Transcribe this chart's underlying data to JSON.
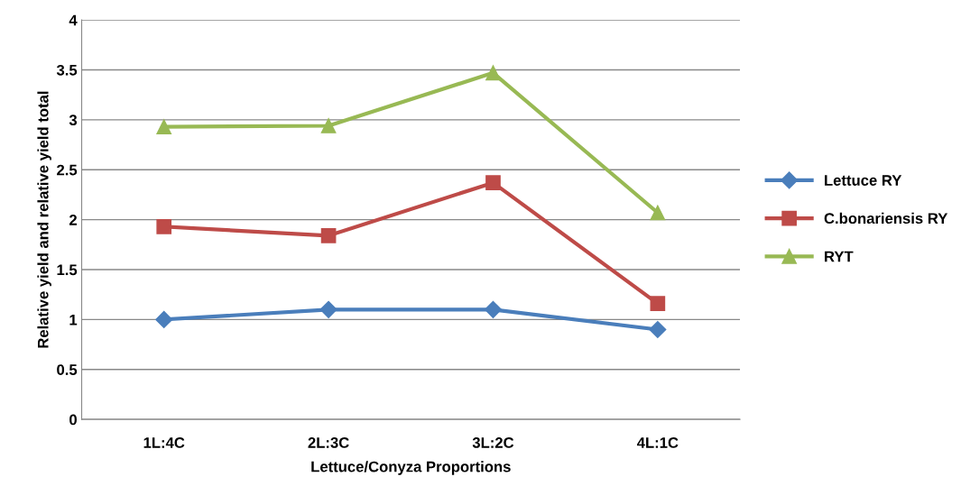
{
  "chart_data": {
    "type": "line",
    "xlabel": "Lettuce/Conyza Proportions",
    "ylabel": "Relative yield and relative yield total",
    "categories": [
      "1L:4C",
      "2L:3C",
      "3L:2C",
      "4L:1C"
    ],
    "series": [
      {
        "name": "Lettuce RY",
        "color": "#4a7ebb",
        "marker": "diamond",
        "values": [
          1.0,
          1.1,
          1.1,
          0.9
        ]
      },
      {
        "name": "C.bonariensis RY",
        "color": "#be4b48",
        "marker": "square",
        "values": [
          1.93,
          1.84,
          2.37,
          1.16
        ]
      },
      {
        "name": "RYT",
        "color": "#98b954",
        "marker": "triangle",
        "values": [
          2.93,
          2.94,
          3.47,
          2.07
        ]
      }
    ],
    "ylim": [
      0,
      4
    ],
    "yticks": [
      0,
      0.5,
      1,
      1.5,
      2,
      2.5,
      3,
      3.5,
      4
    ],
    "grid": "y",
    "legend": "right",
    "line_style": "solid"
  }
}
